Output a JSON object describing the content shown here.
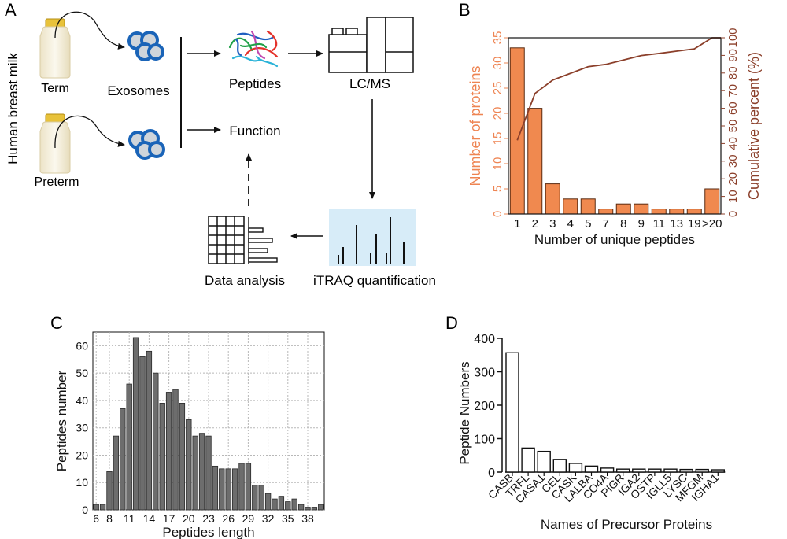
{
  "panels": {
    "a": {
      "letter": "A",
      "side_label": "Human breast milk",
      "term": "Term",
      "preterm": "Preterm",
      "exosomes": "Exosomes",
      "peptides": "Peptides",
      "function": "Function",
      "lcms": "LC/MS",
      "data_analysis": "Data analysis",
      "itraq": "iTRAQ quantification",
      "colors": {
        "exosome_ring": "#1a64b8",
        "bottle_cap": "#e8c23a",
        "itraq_bg": "#d7ecf8"
      }
    },
    "b": {
      "letter": "B"
    },
    "c": {
      "letter": "C"
    },
    "d": {
      "letter": "D"
    }
  },
  "chart_data": [
    {
      "id": "B",
      "type": "bar",
      "categories": [
        "1",
        "2",
        "3",
        "4",
        "5",
        "7",
        "8",
        "9",
        "11",
        "13",
        "19",
        ">20"
      ],
      "series": [
        {
          "values": [
            33,
            21,
            6,
            3,
            3,
            1,
            2,
            2,
            1,
            1,
            1,
            5
          ]
        }
      ],
      "line": {
        "values": [
          41.8,
          68.4,
          76.0,
          79.8,
          83.6,
          84.9,
          87.4,
          89.9,
          91.1,
          92.4,
          93.7,
          100
        ]
      },
      "xlabel": "Number of unique peptides",
      "ylabel": "Number of proteins",
      "y2label": "Cumulative percent (%)",
      "ylim": [
        0,
        35
      ],
      "y2lim": [
        0,
        100
      ],
      "yticks": [
        "0",
        "5",
        "10",
        "15",
        "20",
        "25",
        "30",
        "35"
      ],
      "y2ticks": [
        "0",
        "10",
        "20",
        "30",
        "40",
        "50",
        "60",
        "70",
        "80",
        "90",
        "100"
      ],
      "grid": false,
      "colors": {
        "bar": "#f0894f",
        "bar_edge": "#5a2a10",
        "line": "#8b3f2a",
        "axis_left": "#ee8452",
        "axis_right": "#8b3f2a"
      }
    },
    {
      "id": "C",
      "type": "bar",
      "x": [
        6,
        7,
        8,
        9,
        10,
        11,
        12,
        13,
        14,
        15,
        16,
        17,
        18,
        19,
        20,
        21,
        22,
        23,
        24,
        25,
        26,
        27,
        28,
        29,
        30,
        31,
        32,
        33,
        34,
        35,
        36,
        37,
        38,
        39,
        40
      ],
      "values": [
        2,
        2,
        14,
        27,
        37,
        46,
        63,
        56,
        58,
        50,
        39,
        43,
        44,
        39,
        33,
        27,
        28,
        27,
        16,
        15,
        15,
        15,
        17,
        17,
        9,
        9,
        6,
        4,
        5,
        3,
        4,
        2,
        1,
        1,
        2
      ],
      "xticks": [
        "6",
        "8",
        "11",
        "14",
        "17",
        "20",
        "23",
        "26",
        "29",
        "32",
        "35",
        "38"
      ],
      "yticks": [
        "0",
        "10",
        "20",
        "30",
        "40",
        "50",
        "60"
      ],
      "xlabel": "Peptides length",
      "ylabel": "Peptides number",
      "ylim": [
        0,
        65
      ],
      "grid": true,
      "colors": {
        "bar": "#6d6d6d",
        "bar_edge": "#2a2a2a",
        "grid": "#b8b8b8"
      }
    },
    {
      "id": "D",
      "type": "bar",
      "categories": [
        "CASB",
        "TRFL",
        "CASA1",
        "CEL",
        "CASK",
        "LALBA",
        "CO4A",
        "PIGR",
        "IGA2",
        "OSTP",
        "IGLL5",
        "LYSC",
        "MFGM",
        "IGHA1"
      ],
      "values": [
        357,
        72,
        62,
        38,
        26,
        18,
        12,
        9,
        9,
        9,
        9,
        8,
        8,
        7
      ],
      "xlabel": "Names of Precursor Proteins",
      "ylabel": "Peptide Numbers",
      "ylim": [
        0,
        400
      ],
      "yticks": [
        "0",
        "100",
        "200",
        "300",
        "400"
      ],
      "grid": false,
      "colors": {
        "bar": "#ffffff",
        "bar_edge": "#111111"
      }
    }
  ]
}
